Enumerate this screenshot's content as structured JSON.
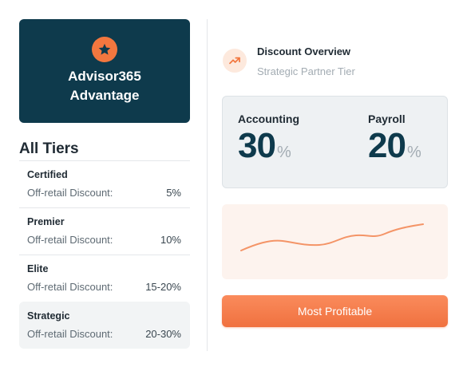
{
  "colors": {
    "brand_dark": "#0e3a4c",
    "accent": "#f2773f",
    "muted": "#a3acb3"
  },
  "hero": {
    "icon": "star-icon",
    "title": "Advisor365\nAdvantage"
  },
  "tiers": {
    "heading": "All Tiers",
    "items": [
      {
        "name": "Certified",
        "label": "Off-retail Discount:",
        "value": "5%"
      },
      {
        "name": "Premier",
        "label": "Off-retail Discount:",
        "value": "10%"
      },
      {
        "name": "Elite",
        "label": "Off-retail Discount:",
        "value": "15-20%"
      },
      {
        "name": "Strategic",
        "label": "Off-retail Discount:",
        "value": "20-30%"
      }
    ],
    "selected": "Strategic"
  },
  "overview": {
    "icon": "trending-up-icon",
    "title": "Discount Overview",
    "subtitle": "Strategic Partner Tier"
  },
  "stats": [
    {
      "label": "Accounting",
      "value": "30",
      "unit": "%"
    },
    {
      "label": "Payroll",
      "value": "20",
      "unit": "%"
    }
  ],
  "cta": {
    "label": "Most Profitable"
  }
}
